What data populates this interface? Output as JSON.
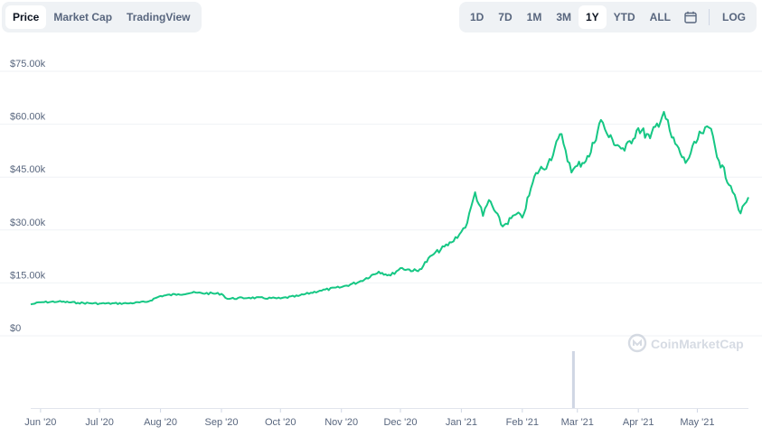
{
  "tabs": [
    {
      "label": "Price",
      "active": true
    },
    {
      "label": "Market Cap",
      "active": false
    },
    {
      "label": "TradingView",
      "active": false
    }
  ],
  "ranges": [
    {
      "label": "1D",
      "active": false
    },
    {
      "label": "7D",
      "active": false
    },
    {
      "label": "1M",
      "active": false
    },
    {
      "label": "3M",
      "active": false
    },
    {
      "label": "1Y",
      "active": true
    },
    {
      "label": "YTD",
      "active": false
    },
    {
      "label": "ALL",
      "active": false
    }
  ],
  "calendar_icon": "calendar-icon",
  "log_label": "LOG",
  "watermark": "CoinMarketCap",
  "colors": {
    "line": "#16c784",
    "volume": "#cfd6e4",
    "grid": "#eff2f5",
    "text": "#58667e"
  },
  "chart_data": {
    "type": "line",
    "title": "",
    "xlabel": "",
    "ylabel": "",
    "y_ticks": [
      "$0",
      "$15.00k",
      "$30.00k",
      "$45.00k",
      "$60.00k",
      "$75.00k"
    ],
    "y_tick_values": [
      0,
      15000,
      30000,
      45000,
      60000,
      75000
    ],
    "ylim": [
      0,
      75000
    ],
    "x_ticks": [
      "Jun '20",
      "Jul '20",
      "Aug '20",
      "Sep '20",
      "Oct '20",
      "Nov '20",
      "Dec '20",
      "Jan '21",
      "Feb '21",
      "Mar '21",
      "Apr '21",
      "May '21"
    ],
    "x_tick_dates": [
      "2020-06-01",
      "2020-07-01",
      "2020-08-01",
      "2020-09-01",
      "2020-10-01",
      "2020-11-01",
      "2020-12-01",
      "2021-01-01",
      "2021-02-01",
      "2021-03-01",
      "2021-04-01",
      "2021-05-01"
    ],
    "xlim": [
      "2020-05-27",
      "2021-05-27"
    ],
    "grid": true,
    "series": [
      {
        "values": [
          [
            "2020-05-27",
            8900
          ],
          [
            "2020-06-01",
            9500
          ],
          [
            "2020-06-10",
            9700
          ],
          [
            "2020-06-20",
            9350
          ],
          [
            "2020-07-01",
            9150
          ],
          [
            "2020-07-15",
            9200
          ],
          [
            "2020-07-25",
            9600
          ],
          [
            "2020-08-01",
            11300
          ],
          [
            "2020-08-10",
            11800
          ],
          [
            "2020-08-17",
            12200
          ],
          [
            "2020-09-01",
            11900
          ],
          [
            "2020-09-04",
            10500
          ],
          [
            "2020-09-15",
            10800
          ],
          [
            "2020-10-01",
            10600
          ],
          [
            "2020-10-10",
            11300
          ],
          [
            "2020-10-21",
            12800
          ],
          [
            "2020-11-01",
            13800
          ],
          [
            "2020-11-10",
            15300
          ],
          [
            "2020-11-20",
            18200
          ],
          [
            "2020-11-26",
            17100
          ],
          [
            "2020-12-01",
            19200
          ],
          [
            "2020-12-10",
            18300
          ],
          [
            "2020-12-17",
            22800
          ],
          [
            "2020-12-27",
            26500
          ],
          [
            "2021-01-01",
            29500
          ],
          [
            "2021-01-04",
            32000
          ],
          [
            "2021-01-08",
            40700
          ],
          [
            "2021-01-12",
            34000
          ],
          [
            "2021-01-15",
            38500
          ],
          [
            "2021-01-22",
            31000
          ],
          [
            "2021-01-29",
            34500
          ],
          [
            "2021-02-01",
            33500
          ],
          [
            "2021-02-08",
            46200
          ],
          [
            "2021-02-14",
            48800
          ],
          [
            "2021-02-21",
            57200
          ],
          [
            "2021-02-26",
            46300
          ],
          [
            "2021-03-01",
            48200
          ],
          [
            "2021-03-07",
            50800
          ],
          [
            "2021-03-13",
            61200
          ],
          [
            "2021-03-17",
            56300
          ],
          [
            "2021-03-25",
            52500
          ],
          [
            "2021-04-01",
            58900
          ],
          [
            "2021-04-07",
            56000
          ],
          [
            "2021-04-14",
            63500
          ],
          [
            "2021-04-18",
            56200
          ],
          [
            "2021-04-25",
            49000
          ],
          [
            "2021-05-03",
            57500
          ],
          [
            "2021-05-08",
            58700
          ],
          [
            "2021-05-12",
            49600
          ],
          [
            "2021-05-18",
            42500
          ],
          [
            "2021-05-20",
            40000
          ],
          [
            "2021-05-23",
            34700
          ],
          [
            "2021-05-27",
            39300
          ]
        ]
      }
    ],
    "volume_spike": {
      "date": "2021-02-27",
      "level": "max"
    }
  }
}
